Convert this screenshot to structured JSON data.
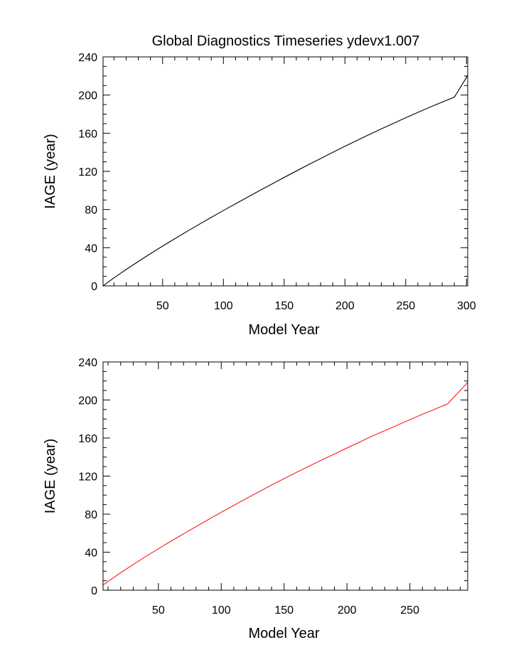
{
  "figure": {
    "title": "Global Diagnostics Timeseries ydevx1.007"
  },
  "chart_data": [
    {
      "type": "line",
      "title": "Global Diagnostics Timeseries ydevx1.007",
      "xlabel": "Model Year",
      "ylabel": "IAGE (year)",
      "xlim": [
        1,
        301
      ],
      "ylim": [
        0,
        240
      ],
      "xticks": [
        "50",
        "100",
        "150",
        "200",
        "250",
        "300"
      ],
      "yticks": [
        "0",
        "40",
        "80",
        "120",
        "160",
        "200",
        "240"
      ],
      "grid": false,
      "series": [
        {
          "color": "#cc0000",
          "x": [
            1,
            10,
            20,
            30,
            40,
            50,
            60,
            70,
            80,
            90,
            100,
            110,
            120,
            130,
            140,
            150,
            160,
            170,
            180,
            190,
            200,
            210,
            220,
            230,
            240,
            250,
            260,
            270,
            280,
            290,
            301
          ],
          "y": [
            0,
            8.5,
            17.2,
            25.6,
            33.8,
            41.7,
            49.4,
            57.0,
            64.5,
            71.8,
            79.0,
            86.0,
            93.0,
            100.0,
            106.8,
            113.7,
            120.4,
            127.0,
            133.5,
            140.0,
            146.3,
            152.5,
            158.6,
            164.6,
            170.4,
            176.2,
            181.8,
            187.3,
            192.6,
            197.8,
            220.5
          ]
        },
        {
          "color": "#000000",
          "x": [
            1,
            10,
            20,
            30,
            40,
            50,
            60,
            70,
            80,
            90,
            100,
            110,
            120,
            130,
            140,
            150,
            160,
            170,
            180,
            190,
            200,
            210,
            220,
            230,
            240,
            250,
            260,
            270,
            280,
            290,
            301
          ],
          "y": [
            0,
            8.5,
            17.2,
            25.6,
            33.8,
            41.7,
            49.4,
            57.0,
            64.5,
            71.8,
            79.0,
            86.0,
            93.0,
            100.0,
            106.8,
            113.7,
            120.4,
            127.0,
            133.5,
            140.0,
            146.3,
            152.5,
            158.6,
            164.6,
            170.4,
            176.2,
            181.8,
            187.3,
            192.6,
            197.8,
            220.5
          ]
        }
      ]
    },
    {
      "type": "line",
      "title": "",
      "xlabel": "Model Year",
      "ylabel": "IAGE (year)",
      "xlim": [
        6,
        296
      ],
      "ylim": [
        0,
        240
      ],
      "xticks": [
        "50",
        "100",
        "150",
        "200",
        "250"
      ],
      "yticks": [
        "0",
        "40",
        "80",
        "120",
        "160",
        "200",
        "240"
      ],
      "grid": false,
      "series": [
        {
          "color": "#ff0000",
          "x": [
            6,
            20,
            40,
            60,
            80,
            100,
            120,
            140,
            160,
            180,
            200,
            220,
            240,
            260,
            280,
            296
          ],
          "y": [
            5.5,
            18.5,
            35.5,
            51.5,
            67.0,
            82.0,
            96.5,
            110.5,
            124.0,
            137.0,
            149.5,
            162.0,
            173.5,
            185.0,
            196.0,
            218.5
          ]
        }
      ]
    }
  ]
}
